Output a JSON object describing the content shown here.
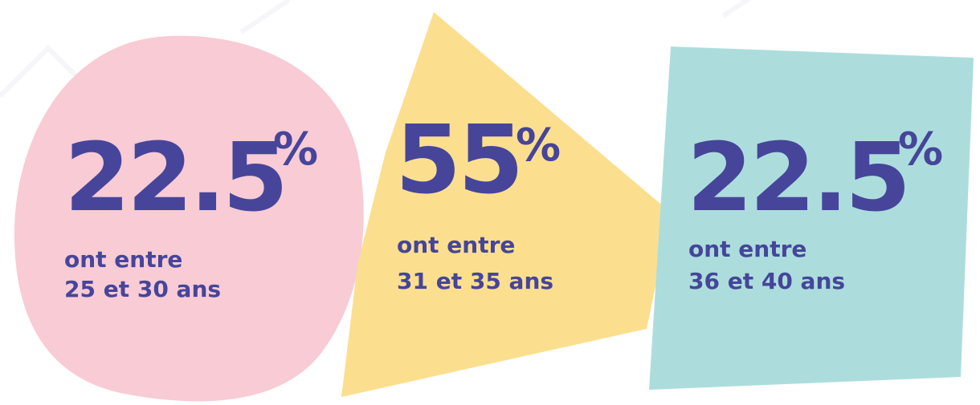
{
  "items": [
    {
      "value": "22.5",
      "unit": "%",
      "line1": "ont entre",
      "line2": "25 et 30 ans"
    },
    {
      "value": "55",
      "unit": "%",
      "line1": "ont entre",
      "line2": "31 et 35 ans"
    },
    {
      "value": "22.5",
      "unit": "%",
      "line1": "ont entre",
      "line2": "36 et 40 ans"
    }
  ]
}
